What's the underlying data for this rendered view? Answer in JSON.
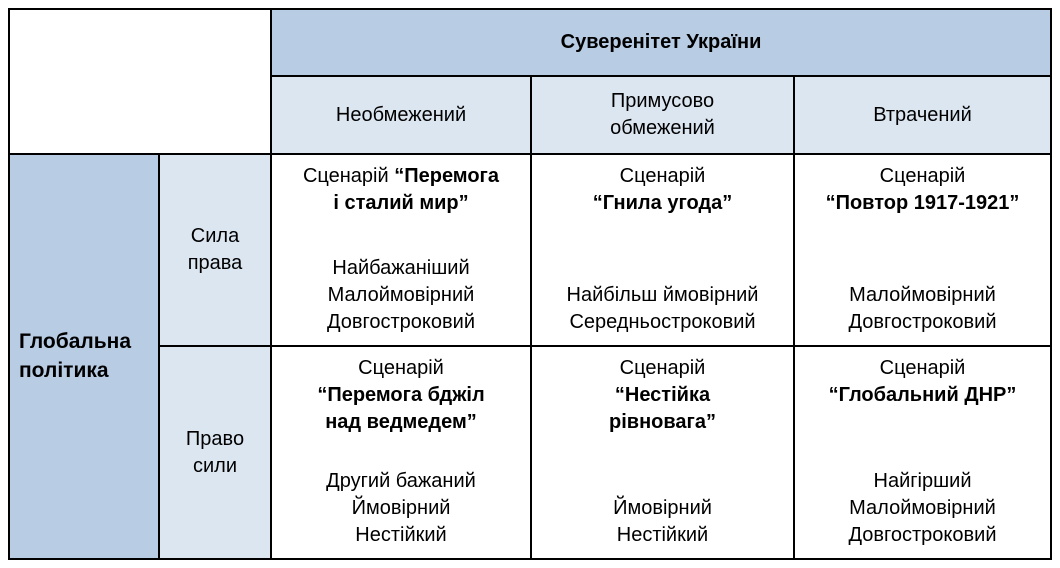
{
  "table": {
    "col_group_header": "Суверенітет України",
    "col_headers": [
      "Необмежений",
      "Примусово\nобмежений",
      "Втрачений"
    ],
    "row_group_header": "Глобальна\nполітика",
    "row_headers": [
      "Сила\nправа",
      "Право\nсили"
    ],
    "cells": [
      {
        "prefix": "Сценарій ",
        "name": "“Перемога\nі сталий мир”",
        "attrs": "Найбажаніший\nМалоймовірний\nДовгостроковий"
      },
      {
        "prefix": "Сценарій\n",
        "name": "“Гнила угода”",
        "attrs": "Найбільш ймовірний\nСередньостроковий"
      },
      {
        "prefix": "Сценарій\n",
        "name": "“Повтор 1917-1921”",
        "attrs": "Малоймовірний\nДовгостроковий"
      },
      {
        "prefix": "Сценарій\n",
        "name": "“Перемога бджіл\nнад ведмедем”",
        "attrs": "Другий бажаний\nЙмовірний\nНестійкий"
      },
      {
        "prefix": "Сценарій\n",
        "name": "“Нестійка\nрівновага”",
        "attrs": "Ймовірний\nНестійкий"
      },
      {
        "prefix": "Сценарій\n",
        "name": "“Глобальний ДНР”",
        "attrs": "Найгірший\nМалоймовірний\nДовгостроковий"
      }
    ],
    "colors": {
      "header_bg": "#b8cce4",
      "subheader_bg": "#dce6f1",
      "cell_bg": "#ffffff",
      "grid_line": "#000000",
      "text": "#000000"
    }
  }
}
